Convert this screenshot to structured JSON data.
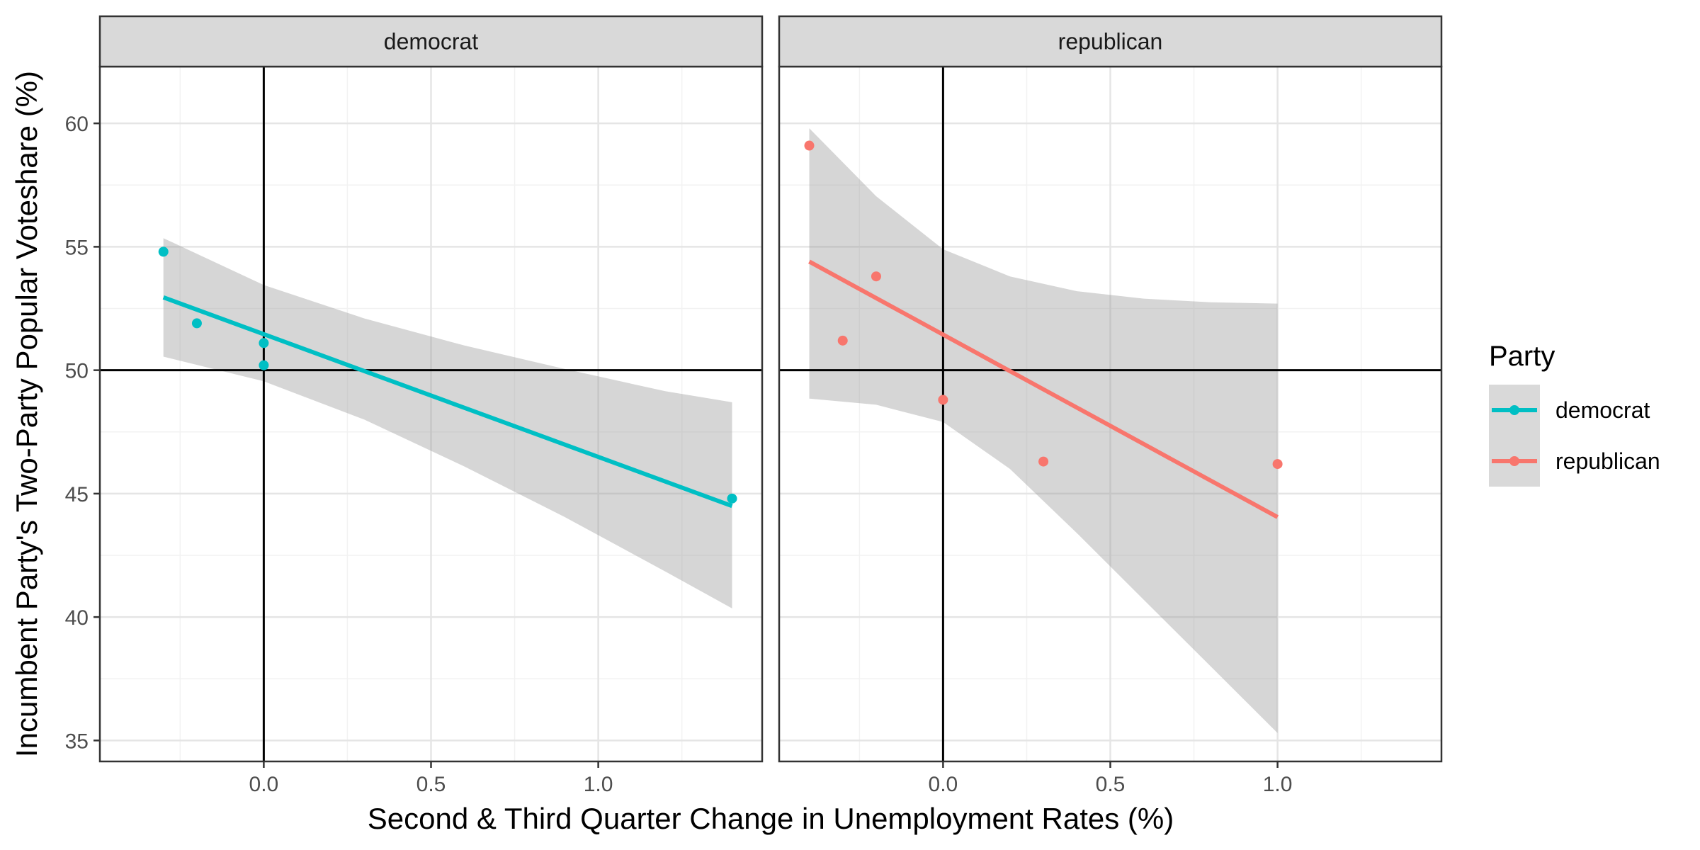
{
  "chart_data": {
    "type": "scatter",
    "xlabel": "Second & Third Quarter Change in Unemployment Rates (%)",
    "ylabel": "Incumbent Party's Two-Party Popular Voteshare (%)",
    "xlim": [
      -0.49,
      1.49
    ],
    "ylim": [
      34.15,
      62.3
    ],
    "x_ticks": [
      0.0,
      0.5,
      1.0
    ],
    "x_tick_labels": [
      "0.0",
      "0.5",
      "1.0"
    ],
    "y_ticks": [
      35,
      40,
      45,
      50,
      55,
      60
    ],
    "y_tick_labels": [
      "35",
      "40",
      "45",
      "50",
      "55",
      "60"
    ],
    "reference_lines": {
      "x": 0,
      "y": 50
    },
    "grid": true,
    "legend": {
      "title": "Party",
      "placement": "right",
      "entries": [
        {
          "label": "democrat",
          "color": "#00BFC4"
        },
        {
          "label": "republican",
          "color": "#F8766D"
        }
      ]
    },
    "panels": [
      {
        "name": "democrat",
        "color": "#00BFC4",
        "points": [
          {
            "x": -0.3,
            "y": 54.8
          },
          {
            "x": -0.2,
            "y": 51.9
          },
          {
            "x": 0.0,
            "y": 51.1
          },
          {
            "x": 0.0,
            "y": 50.2
          },
          {
            "x": 1.4,
            "y": 44.8
          }
        ],
        "fit": {
          "x": [
            -0.3,
            1.4
          ],
          "y": [
            52.95,
            44.5
          ]
        },
        "ribbon": {
          "x": [
            -0.3,
            0.0,
            0.3,
            0.6,
            0.9,
            1.2,
            1.4
          ],
          "lower": [
            50.55,
            49.55,
            48.0,
            46.1,
            44.05,
            41.85,
            40.35
          ],
          "upper": [
            55.35,
            53.45,
            52.1,
            51.0,
            50.05,
            49.15,
            48.7
          ]
        }
      },
      {
        "name": "republican",
        "color": "#F8766D",
        "points": [
          {
            "x": -0.4,
            "y": 59.1
          },
          {
            "x": -0.3,
            "y": 51.2
          },
          {
            "x": -0.2,
            "y": 53.8
          },
          {
            "x": 0.0,
            "y": 48.8
          },
          {
            "x": 0.3,
            "y": 46.3
          },
          {
            "x": 1.0,
            "y": 46.2
          }
        ],
        "fit": {
          "x": [
            -0.4,
            1.0
          ],
          "y": [
            54.4,
            44.05
          ]
        },
        "ribbon": {
          "x": [
            -0.4,
            -0.2,
            0.0,
            0.2,
            0.4,
            0.6,
            0.8,
            1.0
          ],
          "lower": [
            48.85,
            48.6,
            47.9,
            46.0,
            43.4,
            40.7,
            38.0,
            35.3
          ],
          "upper": [
            59.8,
            57.05,
            54.9,
            53.8,
            53.2,
            52.9,
            52.75,
            52.7
          ]
        }
      }
    ]
  }
}
